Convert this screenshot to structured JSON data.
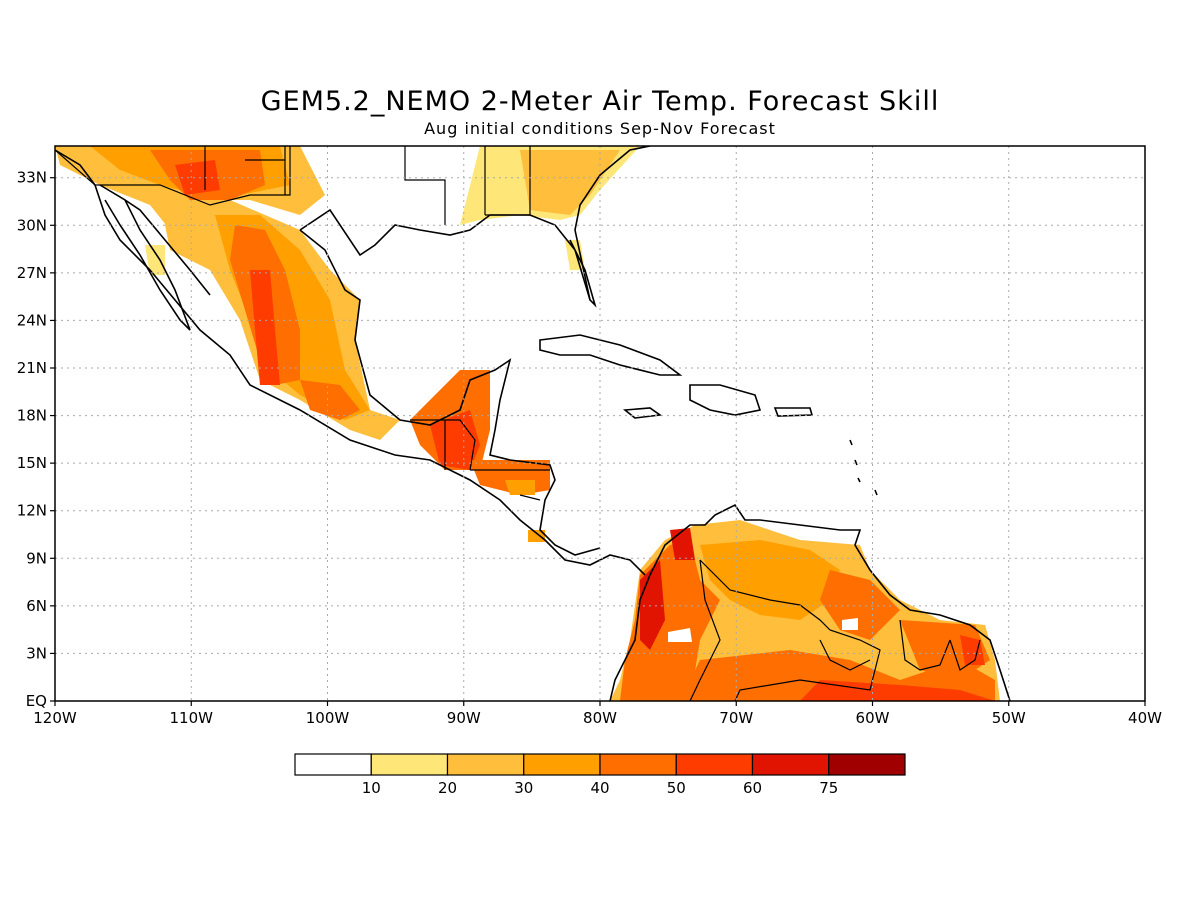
{
  "title": "GEM5.2_NEMO 2-Meter Air Temp. Forecast Skill",
  "subtitle": "Aug initial conditions  Sep-Nov Forecast",
  "map": {
    "lon_range": [
      -120,
      -40
    ],
    "lat_range": [
      0,
      35
    ],
    "x_ticks": [
      {
        "lon": -120,
        "label": "120W"
      },
      {
        "lon": -110,
        "label": "110W"
      },
      {
        "lon": -100,
        "label": "100W"
      },
      {
        "lon": -90,
        "label": "90W"
      },
      {
        "lon": -80,
        "label": "80W"
      },
      {
        "lon": -70,
        "label": "70W"
      },
      {
        "lon": -60,
        "label": "60W"
      },
      {
        "lon": -50,
        "label": "50W"
      },
      {
        "lon": -40,
        "label": "40W"
      }
    ],
    "y_ticks": [
      {
        "lat": 0,
        "label": "EQ"
      },
      {
        "lat": 3,
        "label": "3N"
      },
      {
        "lat": 6,
        "label": "6N"
      },
      {
        "lat": 9,
        "label": "9N"
      },
      {
        "lat": 12,
        "label": "12N"
      },
      {
        "lat": 15,
        "label": "15N"
      },
      {
        "lat": 18,
        "label": "18N"
      },
      {
        "lat": 21,
        "label": "21N"
      },
      {
        "lat": 24,
        "label": "24N"
      },
      {
        "lat": 27,
        "label": "27N"
      },
      {
        "lat": 30,
        "label": "30N"
      },
      {
        "lat": 33,
        "label": "33N"
      }
    ]
  },
  "colorbar": {
    "colors": [
      "#ffffff",
      "#ffe678",
      "#ffbe3c",
      "#ffa000",
      "#ff6e00",
      "#ff3c00",
      "#e01400",
      "#a00000"
    ],
    "labels": [
      "10",
      "20",
      "30",
      "40",
      "50",
      "60",
      "75"
    ]
  }
}
